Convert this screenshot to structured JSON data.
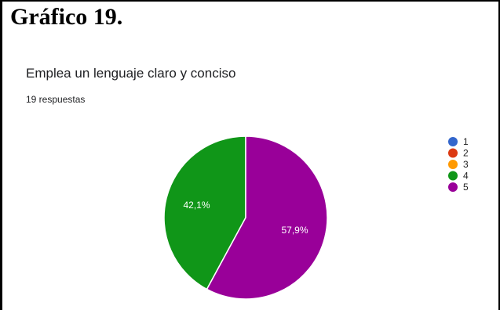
{
  "document": {
    "heading": "Gráfico 19."
  },
  "form": {
    "question": "Emplea un lenguaje claro y conciso",
    "responses": "19 respuestas"
  },
  "chart_data": {
    "type": "pie",
    "start_angle_deg": 90,
    "direction": "counterclockwise",
    "slices": [
      {
        "label": "1",
        "value": 0,
        "percent_label": "",
        "color": "#3366cc"
      },
      {
        "label": "2",
        "value": 0,
        "percent_label": "",
        "color": "#dc3912"
      },
      {
        "label": "3",
        "value": 0,
        "percent_label": "",
        "color": "#ff9900"
      },
      {
        "label": "4",
        "value": 8,
        "percent_label": "42,1%",
        "color": "#109618"
      },
      {
        "label": "5",
        "value": 11,
        "percent_label": "57,9%",
        "color": "#990099"
      }
    ],
    "legend_placement": "right"
  }
}
